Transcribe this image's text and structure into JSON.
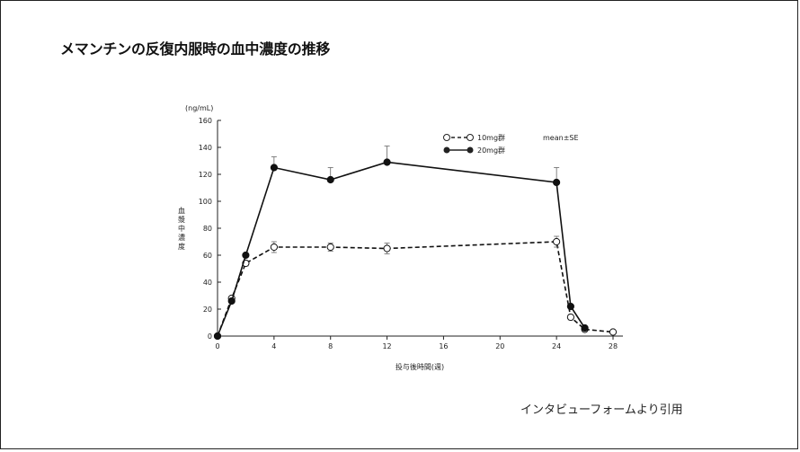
{
  "title": "メマンチンの反復内服時の血中濃度の推移",
  "source_note": "インタビューフォームより引用",
  "chart_data": {
    "type": "line",
    "unit_label": "(ng/mL)",
    "ylabel": "血漿中濃度",
    "xlabel": "投与後時間(週)",
    "stat_label": "mean±SE",
    "xlim": [
      0,
      28
    ],
    "ylim": [
      0,
      160
    ],
    "xticks": [
      0,
      4,
      8,
      12,
      16,
      20,
      24,
      28
    ],
    "yticks": [
      0,
      20,
      40,
      60,
      80,
      100,
      120,
      140,
      160
    ],
    "legend_position": "top-right",
    "series": [
      {
        "name": "10mg群",
        "marker": "open-circle",
        "line": "dashed",
        "x": [
          0,
          1,
          2,
          4,
          8,
          12,
          24,
          25,
          26,
          28
        ],
        "y": [
          0,
          28,
          54,
          66,
          66,
          65,
          70,
          14,
          5,
          3
        ],
        "err": [
          0,
          1,
          2,
          4,
          3,
          4,
          4,
          2,
          1,
          0
        ]
      },
      {
        "name": "20mg群",
        "marker": "filled-circle",
        "line": "solid",
        "x": [
          0,
          1,
          2,
          4,
          8,
          12,
          24,
          25,
          26
        ],
        "y": [
          0,
          26,
          60,
          125,
          116,
          129,
          114,
          22,
          6
        ],
        "err": [
          0,
          0,
          0,
          8,
          9,
          12,
          11,
          0,
          0
        ]
      }
    ]
  }
}
